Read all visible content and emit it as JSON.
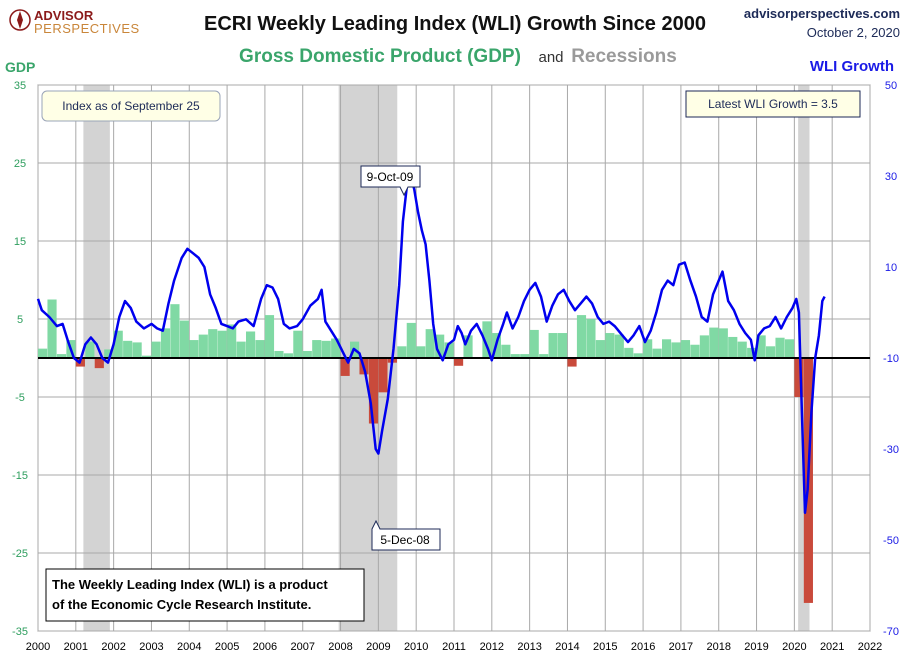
{
  "header": {
    "logo_line1": "ADVISOR",
    "logo_line2": "PERSPECTIVES",
    "title": "ECRI Weekly Leading Index (WLI) Growth Since 2000",
    "subtitle_gdp": "Gross Domestic Product (GDP)",
    "subtitle_and": "and",
    "subtitle_recessions": "Recessions",
    "source": "advisorperspectives.com",
    "date": "October 2, 2020"
  },
  "annotations": {
    "index_note": "Index as of September 25",
    "latest_wli": "Latest WLI Growth = 3.5",
    "peak_label": "9-Oct-09",
    "trough_label": "5-Dec-08",
    "credit_line1": "The Weekly Leading Index (WLI) is a product",
    "credit_line2": "of the Economic Cycle Research Institute."
  },
  "colors": {
    "wli_line": "#0000ee",
    "gdp_positive": "#80d9a4",
    "gdp_negative": "#c94a3b",
    "recession": "#d3d3d3",
    "left_axis": "#2e9e5e",
    "right_axis": "#1a1ae6"
  },
  "chart_data": {
    "type": "line",
    "title": "ECRI Weekly Leading Index (WLI) Growth Since 2000",
    "subtitle": "Gross Domestic Product (GDP) and Recessions",
    "x_ticks": [
      "2000",
      "2001",
      "2002",
      "2003",
      "2004",
      "2005",
      "2006",
      "2007",
      "2008",
      "2009",
      "2010",
      "2011",
      "2012",
      "2013",
      "2014",
      "2015",
      "2016",
      "2017",
      "2018",
      "2019",
      "2020",
      "2021",
      "2022"
    ],
    "xlim": [
      2000,
      2022
    ],
    "left_axis": {
      "label": "GDP",
      "ylim": [
        -35,
        35
      ],
      "ticks": [
        35,
        25,
        15,
        5,
        -5,
        -15,
        -25,
        -35
      ]
    },
    "right_axis": {
      "label": "WLI Growth",
      "ylim": [
        -70,
        50
      ],
      "ticks": [
        50,
        30,
        10,
        -10,
        -30,
        -50,
        -70
      ]
    },
    "recessions": [
      [
        2001.2,
        2001.9
      ],
      [
        2007.95,
        2009.5
      ],
      [
        2020.1,
        2020.4
      ]
    ],
    "gdp_series": {
      "name": "Gross Domestic Product (GDP)",
      "axis": "left",
      "quarters": [
        2000.0,
        2000.25,
        2000.5,
        2000.75,
        2001.0,
        2001.25,
        2001.5,
        2001.75,
        2002.0,
        2002.25,
        2002.5,
        2002.75,
        2003.0,
        2003.25,
        2003.5,
        2003.75,
        2004.0,
        2004.25,
        2004.5,
        2004.75,
        2005.0,
        2005.25,
        2005.5,
        2005.75,
        2006.0,
        2006.25,
        2006.5,
        2006.75,
        2007.0,
        2007.25,
        2007.5,
        2007.75,
        2008.0,
        2008.25,
        2008.5,
        2008.75,
        2009.0,
        2009.25,
        2009.5,
        2009.75,
        2010.0,
        2010.25,
        2010.5,
        2010.75,
        2011.0,
        2011.25,
        2011.5,
        2011.75,
        2012.0,
        2012.25,
        2012.5,
        2012.75,
        2013.0,
        2013.25,
        2013.5,
        2013.75,
        2014.0,
        2014.25,
        2014.5,
        2014.75,
        2015.0,
        2015.25,
        2015.5,
        2015.75,
        2016.0,
        2016.25,
        2016.5,
        2016.75,
        2017.0,
        2017.25,
        2017.5,
        2017.75,
        2018.0,
        2018.25,
        2018.5,
        2018.75,
        2019.0,
        2019.25,
        2019.5,
        2019.75,
        2020.0,
        2020.25
      ],
      "values": [
        1.2,
        7.5,
        0.5,
        2.3,
        -1.1,
        2.1,
        -1.3,
        1.1,
        3.5,
        2.2,
        2.0,
        0.3,
        2.1,
        3.8,
        6.9,
        4.8,
        2.3,
        3.0,
        3.7,
        3.5,
        4.3,
        2.1,
        3.4,
        2.3,
        5.5,
        0.9,
        0.6,
        3.5,
        0.9,
        2.3,
        2.2,
        2.5,
        -2.3,
        2.1,
        -2.1,
        -8.4,
        -4.4,
        -0.6,
        1.5,
        4.5,
        1.5,
        3.7,
        3.0,
        2.0,
        -1.0,
        2.9,
        -0.1,
        4.7,
        3.2,
        1.7,
        0.5,
        0.5,
        3.6,
        0.5,
        3.2,
        3.2,
        -1.1,
        5.5,
        5.0,
        2.3,
        3.2,
        3.0,
        1.3,
        0.6,
        2.4,
        1.2,
        2.4,
        2.0,
        2.3,
        1.7,
        2.9,
        3.9,
        3.8,
        2.7,
        2.1,
        1.3,
        2.9,
        1.5,
        2.6,
        2.4,
        -5.0,
        -31.4
      ]
    },
    "wli_series": {
      "name": "WLI Growth",
      "axis": "right",
      "points": [
        [
          2000.0,
          3.0
        ],
        [
          2000.1,
          0.5
        ],
        [
          2000.3,
          -1.0
        ],
        [
          2000.5,
          -3.0
        ],
        [
          2000.65,
          -2.5
        ],
        [
          2000.8,
          -6.5
        ],
        [
          2000.95,
          -10.0
        ],
        [
          2001.1,
          -11.0
        ],
        [
          2001.25,
          -7.0
        ],
        [
          2001.4,
          -5.5
        ],
        [
          2001.55,
          -7.0
        ],
        [
          2001.7,
          -10.0
        ],
        [
          2001.85,
          -11.0
        ],
        [
          2002.0,
          -7.0
        ],
        [
          2002.15,
          -1.0
        ],
        [
          2002.3,
          2.5
        ],
        [
          2002.45,
          1.0
        ],
        [
          2002.6,
          -2.0
        ],
        [
          2002.8,
          -3.5
        ],
        [
          2003.0,
          -2.5
        ],
        [
          2003.15,
          -3.5
        ],
        [
          2003.3,
          -4.0
        ],
        [
          2003.45,
          2.0
        ],
        [
          2003.6,
          7.0
        ],
        [
          2003.8,
          12.0
        ],
        [
          2003.95,
          14.0
        ],
        [
          2004.1,
          13.0
        ],
        [
          2004.25,
          12.0
        ],
        [
          2004.4,
          10.0
        ],
        [
          2004.55,
          4.0
        ],
        [
          2004.7,
          1.0
        ],
        [
          2004.85,
          -2.5
        ],
        [
          2005.0,
          -3.0
        ],
        [
          2005.15,
          -3.5
        ],
        [
          2005.3,
          -2.0
        ],
        [
          2005.5,
          -1.5
        ],
        [
          2005.7,
          -3.0
        ],
        [
          2005.9,
          3.0
        ],
        [
          2006.05,
          6.0
        ],
        [
          2006.2,
          5.5
        ],
        [
          2006.35,
          3.0
        ],
        [
          2006.5,
          -2.5
        ],
        [
          2006.65,
          -3.5
        ],
        [
          2006.85,
          -3.0
        ],
        [
          2007.0,
          -1.5
        ],
        [
          2007.2,
          1.5
        ],
        [
          2007.4,
          3.0
        ],
        [
          2007.5,
          5.0
        ],
        [
          2007.6,
          -2.0
        ],
        [
          2007.75,
          -4.0
        ],
        [
          2007.9,
          -6.0
        ],
        [
          2008.05,
          -8.5
        ],
        [
          2008.2,
          -11.0
        ],
        [
          2008.35,
          -8.0
        ],
        [
          2008.5,
          -9.0
        ],
        [
          2008.65,
          -13.0
        ],
        [
          2008.8,
          -20.0
        ],
        [
          2008.93,
          -30.0
        ],
        [
          2009.0,
          -31.0
        ],
        [
          2009.1,
          -26.0
        ],
        [
          2009.25,
          -19.0
        ],
        [
          2009.4,
          -8.0
        ],
        [
          2009.55,
          6.0
        ],
        [
          2009.65,
          20.0
        ],
        [
          2009.77,
          29.0
        ],
        [
          2009.85,
          30.5
        ],
        [
          2009.95,
          27.0
        ],
        [
          2010.05,
          22.0
        ],
        [
          2010.15,
          18.0
        ],
        [
          2010.25,
          15.0
        ],
        [
          2010.35,
          7.0
        ],
        [
          2010.45,
          -2.5
        ],
        [
          2010.55,
          -8.0
        ],
        [
          2010.7,
          -10.5
        ],
        [
          2010.85,
          -7.0
        ],
        [
          2011.0,
          -6.0
        ],
        [
          2011.1,
          -3.0
        ],
        [
          2011.2,
          -4.5
        ],
        [
          2011.3,
          -7.0
        ],
        [
          2011.45,
          -4.0
        ],
        [
          2011.6,
          -2.5
        ],
        [
          2011.75,
          -5.0
        ],
        [
          2011.9,
          -8.0
        ],
        [
          2012.0,
          -10.5
        ],
        [
          2012.15,
          -6.0
        ],
        [
          2012.3,
          -2.5
        ],
        [
          2012.4,
          0.0
        ],
        [
          2012.55,
          -3.5
        ],
        [
          2012.7,
          -1.0
        ],
        [
          2012.85,
          2.5
        ],
        [
          2013.0,
          5.0
        ],
        [
          2013.15,
          6.5
        ],
        [
          2013.3,
          3.5
        ],
        [
          2013.45,
          -2.0
        ],
        [
          2013.6,
          1.5
        ],
        [
          2013.75,
          4.0
        ],
        [
          2013.9,
          5.0
        ],
        [
          2014.05,
          2.5
        ],
        [
          2014.2,
          0.5
        ],
        [
          2014.35,
          2.0
        ],
        [
          2014.5,
          3.5
        ],
        [
          2014.65,
          2.0
        ],
        [
          2014.8,
          -1.0
        ],
        [
          2014.95,
          -2.5
        ],
        [
          2015.1,
          -2.0
        ],
        [
          2015.25,
          -3.0
        ],
        [
          2015.45,
          -5.0
        ],
        [
          2015.6,
          -6.5
        ],
        [
          2015.75,
          -5.0
        ],
        [
          2015.9,
          -3.0
        ],
        [
          2016.05,
          -6.5
        ],
        [
          2016.2,
          -4.0
        ],
        [
          2016.35,
          0.0
        ],
        [
          2016.5,
          5.0
        ],
        [
          2016.65,
          7.0
        ],
        [
          2016.8,
          6.0
        ],
        [
          2016.95,
          10.5
        ],
        [
          2017.1,
          11.0
        ],
        [
          2017.25,
          7.0
        ],
        [
          2017.4,
          3.5
        ],
        [
          2017.55,
          -1.0
        ],
        [
          2017.7,
          -2.0
        ],
        [
          2017.85,
          4.0
        ],
        [
          2018.0,
          7.0
        ],
        [
          2018.1,
          9.0
        ],
        [
          2018.25,
          2.5
        ],
        [
          2018.4,
          0.5
        ],
        [
          2018.55,
          -2.5
        ],
        [
          2018.7,
          -4.5
        ],
        [
          2018.85,
          -6.0
        ],
        [
          2018.95,
          -10.5
        ],
        [
          2019.05,
          -5.0
        ],
        [
          2019.2,
          -3.5
        ],
        [
          2019.35,
          -3.0
        ],
        [
          2019.5,
          -1.0
        ],
        [
          2019.65,
          -3.5
        ],
        [
          2019.8,
          -1.0
        ],
        [
          2019.95,
          1.0
        ],
        [
          2020.05,
          3.0
        ],
        [
          2020.12,
          0.0
        ],
        [
          2020.2,
          -22.0
        ],
        [
          2020.28,
          -44.0
        ],
        [
          2020.35,
          -39.0
        ],
        [
          2020.45,
          -22.0
        ],
        [
          2020.55,
          -10.0
        ],
        [
          2020.65,
          -5.0
        ],
        [
          2020.74,
          2.5
        ],
        [
          2020.8,
          3.5
        ]
      ]
    }
  }
}
